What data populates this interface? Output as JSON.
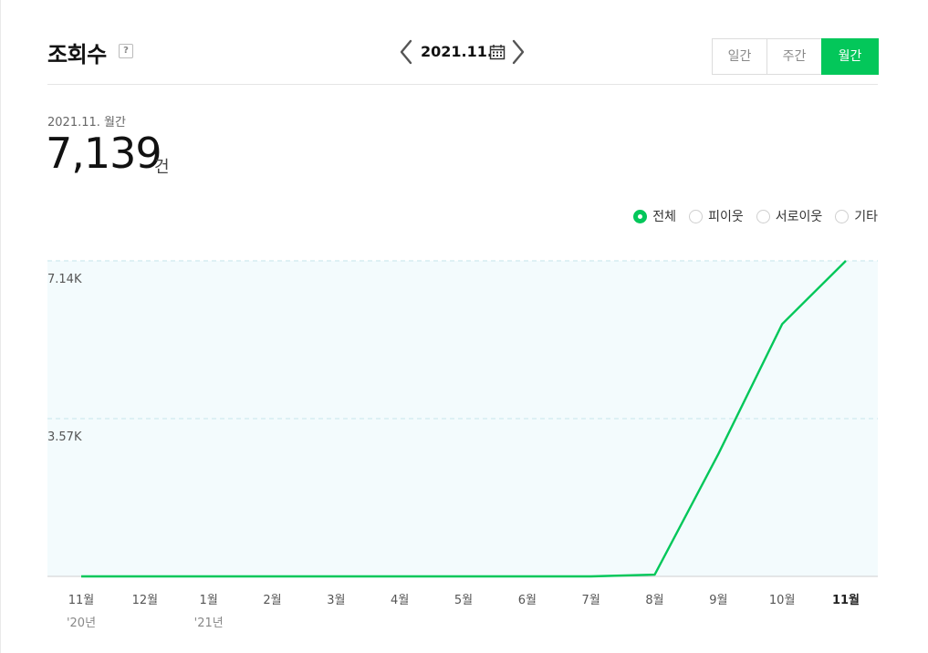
{
  "header": {
    "title": "조회수",
    "help_label": "?",
    "date_label": "2021.11.",
    "tabs": [
      {
        "label": "일간",
        "active": false
      },
      {
        "label": "주간",
        "active": false
      },
      {
        "label": "월간",
        "active": true
      }
    ]
  },
  "summary": {
    "period": "2021.11. 월간",
    "value": "7,139",
    "unit": "건"
  },
  "legend": [
    {
      "label": "전체",
      "checked": true
    },
    {
      "label": "피이웃",
      "checked": false
    },
    {
      "label": "서로이웃",
      "checked": false
    },
    {
      "label": "기타",
      "checked": false
    }
  ],
  "colors": {
    "accent": "#03c75a",
    "plot_bg": "#f3fbfd",
    "grid": "#d6edf1"
  },
  "icons": {
    "prev": "chevron-left-icon",
    "next": "chevron-right-icon",
    "calendar": "calendar-icon",
    "help": "help-icon"
  },
  "chart_data": {
    "type": "line",
    "categories": [
      "11월",
      "12월",
      "1월",
      "2월",
      "3월",
      "4월",
      "5월",
      "6월",
      "7월",
      "8월",
      "9월",
      "10월",
      "11월"
    ],
    "year_labels": [
      "'20년",
      "",
      "'21년",
      "",
      "",
      "",
      "",
      "",
      "",
      "",
      "",
      "",
      ""
    ],
    "highlight_index": 12,
    "series": [
      {
        "values": [
          0,
          0,
          0,
          0,
          0,
          0,
          0,
          0,
          0,
          40,
          2770,
          5710,
          7139
        ]
      }
    ],
    "yticks": [
      {
        "value": 3570,
        "label": "3.57K"
      },
      {
        "value": 7140,
        "label": "7.14K"
      }
    ],
    "ylim": [
      0,
      7139
    ],
    "grid": true
  }
}
